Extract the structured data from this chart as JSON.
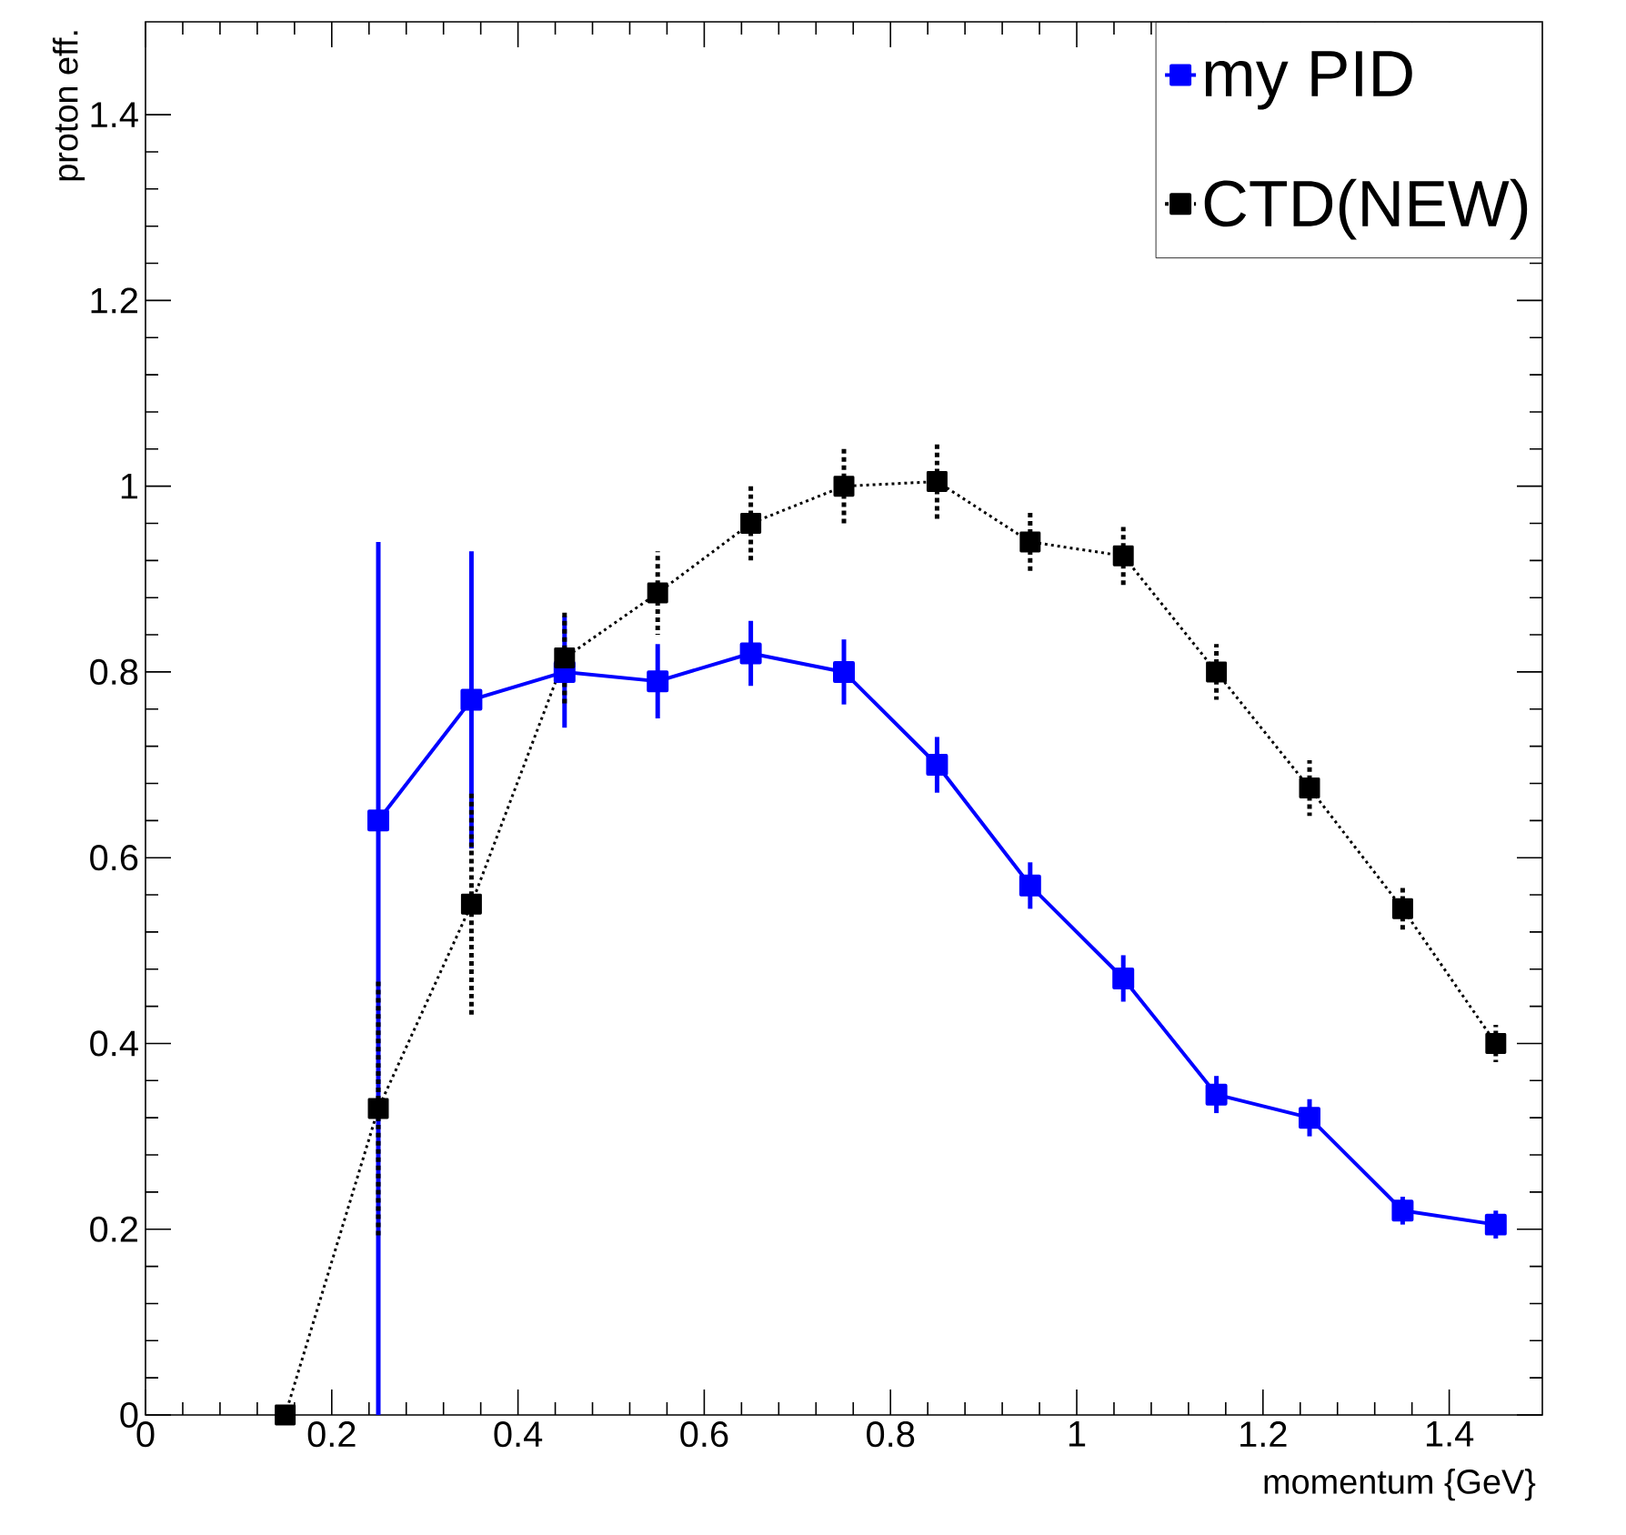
{
  "chart_data": {
    "type": "line",
    "xlabel": "momentum {GeV}",
    "ylabel": "proton eff.",
    "xlim": [
      0,
      1.5
    ],
    "ylim": [
      0,
      1.5
    ],
    "xticks": [
      0,
      0.2,
      0.4,
      0.6,
      0.8,
      1,
      1.2,
      1.4
    ],
    "yticks": [
      0,
      0.2,
      0.4,
      0.6,
      0.8,
      1,
      1.2,
      1.4
    ],
    "legend": "top right",
    "marker": "square",
    "series": [
      {
        "name": "my PID",
        "color": "#0000ff",
        "line_style": "solid",
        "x": [
          0.25,
          0.35,
          0.45,
          0.55,
          0.65,
          0.75,
          0.85,
          0.95,
          1.05,
          1.15,
          1.25,
          1.35,
          1.45
        ],
        "values": [
          0.64,
          0.77,
          0.8,
          0.79,
          0.82,
          0.8,
          0.7,
          0.57,
          0.47,
          0.345,
          0.32,
          0.22,
          0.205
        ],
        "errors": [
          [
            0,
            0.94
          ],
          [
            0.61,
            0.93
          ],
          0.06,
          0.04,
          0.035,
          0.035,
          0.03,
          0.025,
          0.025,
          0.02,
          0.02,
          0.015,
          0.015
        ]
      },
      {
        "name": "CTD(NEW)",
        "color": "#000000",
        "line_style": "dotted",
        "x": [
          0.15,
          0.25,
          0.35,
          0.45,
          0.55,
          0.65,
          0.75,
          0.85,
          0.95,
          1.05,
          1.15,
          1.25,
          1.35,
          1.45
        ],
        "values": [
          0,
          0.33,
          0.55,
          0.815,
          0.885,
          0.96,
          1.0,
          1.005,
          0.94,
          0.925,
          0.8,
          0.675,
          0.545,
          0.4
        ],
        "errors": [
          null,
          0.14,
          0.12,
          0.05,
          0.045,
          0.04,
          0.04,
          0.04,
          0.035,
          0.035,
          0.03,
          0.03,
          0.025,
          0.02
        ]
      }
    ]
  }
}
